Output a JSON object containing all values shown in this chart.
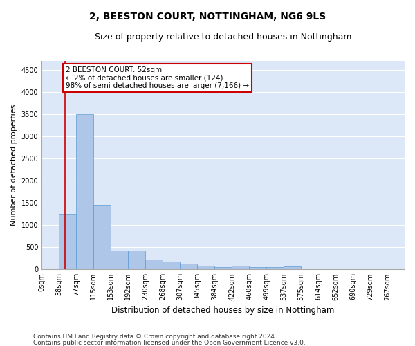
{
  "title": "2, BEESTON COURT, NOTTINGHAM, NG6 9LS",
  "subtitle": "Size of property relative to detached houses in Nottingham",
  "xlabel": "Distribution of detached houses by size in Nottingham",
  "ylabel": "Number of detached properties",
  "bar_color": "#aec6e8",
  "bar_edge_color": "#5b9bd5",
  "background_color": "#dce8f7",
  "grid_color": "#ffffff",
  "bin_labels": [
    "0sqm",
    "38sqm",
    "77sqm",
    "115sqm",
    "153sqm",
    "192sqm",
    "230sqm",
    "268sqm",
    "307sqm",
    "345sqm",
    "384sqm",
    "422sqm",
    "460sqm",
    "499sqm",
    "537sqm",
    "575sqm",
    "614sqm",
    "652sqm",
    "690sqm",
    "729sqm",
    "767sqm"
  ],
  "bar_heights": [
    0,
    1250,
    3500,
    1450,
    425,
    425,
    225,
    175,
    125,
    75,
    50,
    75,
    50,
    50,
    60,
    0,
    0,
    0,
    0,
    0,
    0
  ],
  "property_line_x": 1.35,
  "property_line_color": "#cc0000",
  "annotation_text": "2 BEESTON COURT: 52sqm\n← 2% of detached houses are smaller (124)\n98% of semi-detached houses are larger (7,166) →",
  "annotation_box_color": "#ffffff",
  "annotation_border_color": "#cc0000",
  "ylim": [
    0,
    4700
  ],
  "yticks": [
    0,
    500,
    1000,
    1500,
    2000,
    2500,
    3000,
    3500,
    4000,
    4500
  ],
  "footnote1": "Contains HM Land Registry data © Crown copyright and database right 2024.",
  "footnote2": "Contains public sector information licensed under the Open Government Licence v3.0.",
  "title_fontsize": 10,
  "subtitle_fontsize": 9,
  "xlabel_fontsize": 8.5,
  "ylabel_fontsize": 8,
  "tick_fontsize": 7,
  "annotation_fontsize": 7.5,
  "footnote_fontsize": 6.5
}
